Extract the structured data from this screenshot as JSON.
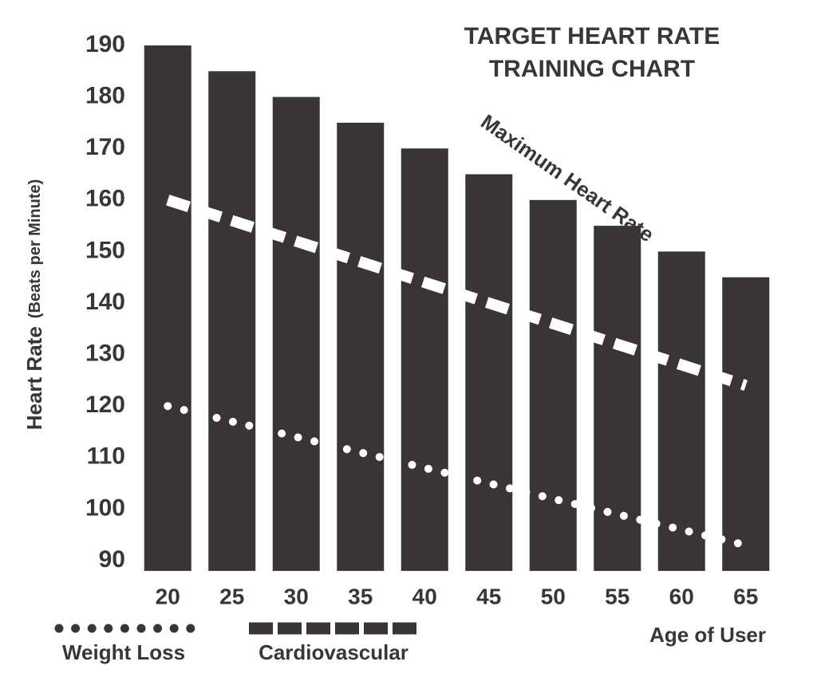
{
  "chart_data": {
    "type": "bar",
    "title": [
      "TARGET HEART RATE",
      "TRAINING CHART"
    ],
    "ylabel": "Heart Rate",
    "ylabel_note": "(Beats per Minute)",
    "xlabel": "Age of User",
    "categories": [
      "20",
      "25",
      "30",
      "35",
      "40",
      "45",
      "50",
      "55",
      "60",
      "65"
    ],
    "series": [
      {
        "name": "Maximum Heart Rate",
        "type": "bar",
        "color": "#393536",
        "values": [
          190,
          185,
          180,
          175,
          170,
          165,
          160,
          155,
          150,
          145
        ]
      },
      {
        "name": "Weight Loss",
        "type": "line",
        "style": "dotted",
        "color": "#ffffff",
        "values": [
          120,
          117,
          114,
          111,
          108,
          105,
          102,
          99,
          96,
          93
        ]
      },
      {
        "name": "Cardiovascular",
        "type": "line",
        "style": "dashed",
        "color": "#ffffff",
        "values": [
          160,
          156,
          152,
          148,
          144,
          140,
          136,
          132,
          128,
          124
        ]
      }
    ],
    "ylim": [
      88,
      192
    ],
    "yticks": [
      90,
      100,
      110,
      120,
      130,
      140,
      150,
      160,
      170,
      180,
      190
    ],
    "grid": false
  }
}
